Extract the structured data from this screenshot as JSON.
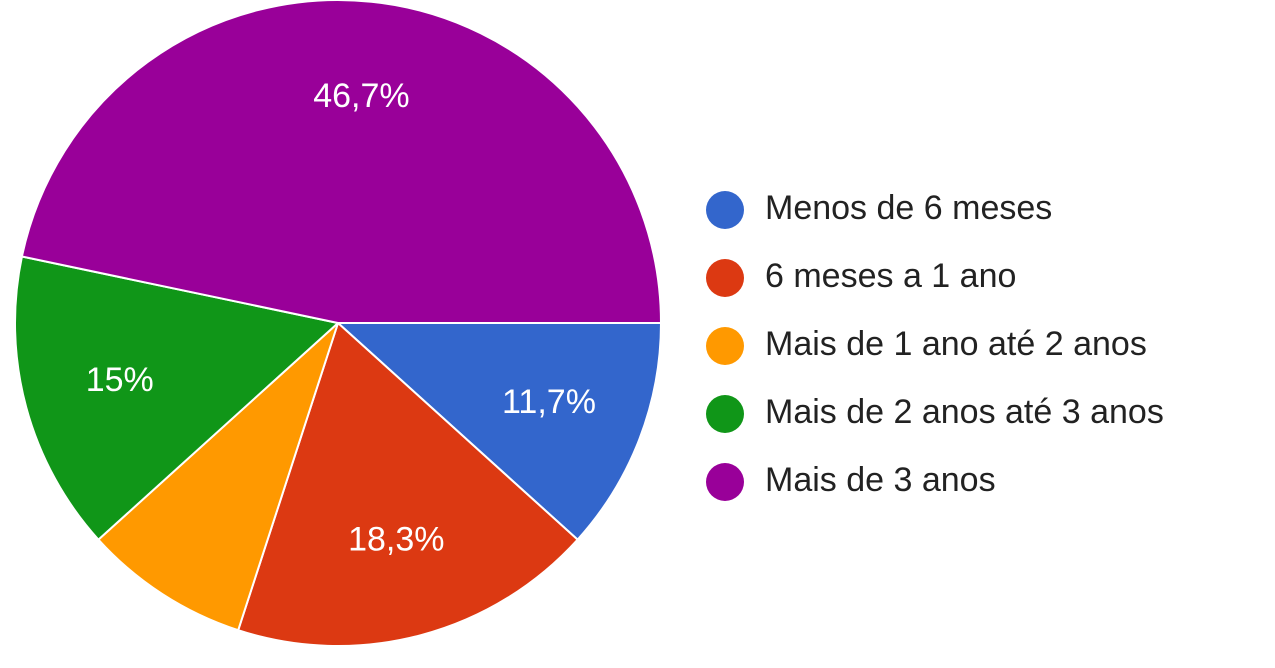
{
  "chart_data": {
    "type": "pie",
    "categories": [
      "Menos de 6 meses",
      "6 meses a 1 ano",
      "Mais de 1 ano até 2 anos",
      "Mais de 2 anos até 3 anos",
      "Mais de 3 anos"
    ],
    "values": [
      11.7,
      18.3,
      8.3,
      15,
      46.7
    ],
    "value_labels": [
      "11,7%",
      "18,3%",
      null,
      "15%",
      "46,7%"
    ],
    "colors": [
      "#3366cc",
      "#dc3912",
      "#ff9900",
      "#109618",
      "#990099"
    ],
    "legend": "right"
  }
}
